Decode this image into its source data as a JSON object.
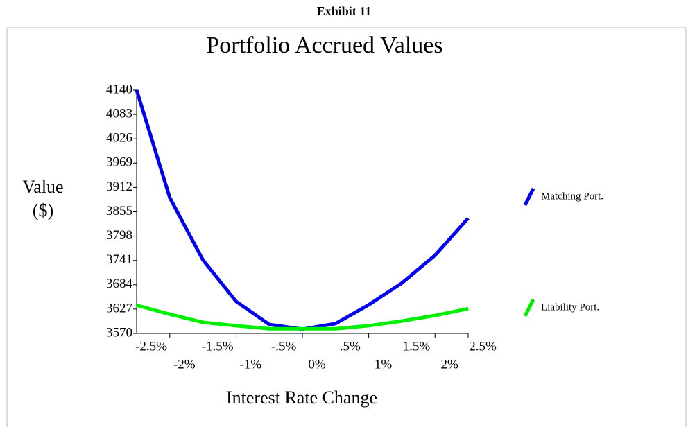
{
  "header": "Exhibit 11",
  "chart_data": {
    "type": "line",
    "title": "Portfolio Accrued Values",
    "y_label": [
      "Value",
      "($)"
    ],
    "x_label": "Interest Rate Change",
    "categories": [
      "-2.5%",
      "-2%",
      "-1.5%",
      "-1%",
      "-.5%",
      "0%",
      ".5%",
      "1%",
      "1.5%",
      "2%",
      "2.5%"
    ],
    "series": [
      {
        "name": "Matching Port.",
        "color": "#0000ee",
        "values": [
          4140,
          3888,
          3742,
          3645,
          3591,
          3580,
          3593,
          3637,
          3688,
          3753,
          3840
        ]
      },
      {
        "name": "Liability Port.",
        "color": "#00ee00",
        "values": [
          3636,
          3615,
          3596,
          3588,
          3581,
          3581,
          3581,
          3588,
          3599,
          3612,
          3628
        ]
      }
    ],
    "ylim": [
      3570,
      4140
    ],
    "yticks": [
      3570,
      3627,
      3684,
      3741,
      3798,
      3855,
      3912,
      3969,
      4026,
      4083,
      4140
    ],
    "legend": "right"
  }
}
